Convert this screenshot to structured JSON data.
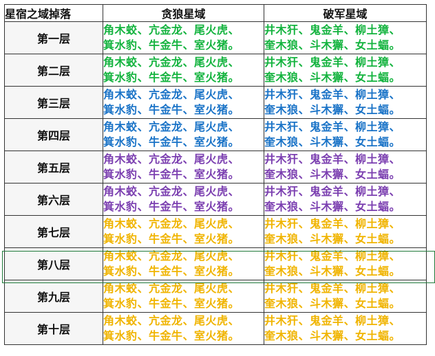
{
  "headers": [
    "星宿之域掉落",
    "贪狼星域",
    "破军星域"
  ],
  "colors": {
    "green": "#13b33e",
    "blue": "#1a73c7",
    "purple": "#7b3fb0",
    "gold": "#f0b400"
  },
  "rows": [
    {
      "label": "第一层",
      "color": "green",
      "tanlang": [
        "角木蛟、亢金龙、尾火虎、",
        "箕水豹、牛金牛、室火猪。"
      ],
      "pojun": [
        "井木犴、鬼金羊、柳土獐、",
        "奎木狼、斗木獬、女土蝠。"
      ]
    },
    {
      "label": "第二层",
      "color": "green",
      "tanlang": [
        "角木蛟、亢金龙、尾火虎、",
        "箕水豹、牛金牛、室火猪。"
      ],
      "pojun": [
        "井木犴、鬼金羊、柳土獐、",
        "奎木狼、斗木獬、女土蝠。"
      ]
    },
    {
      "label": "第三层",
      "color": "blue",
      "tanlang": [
        "角木蛟、亢金龙、尾火虎、",
        "箕水豹、牛金牛、室火猪。"
      ],
      "pojun": [
        "井木犴、鬼金羊、柳土獐、",
        "奎木狼、斗木獬、女土蝠。"
      ]
    },
    {
      "label": "第四层",
      "color": "blue",
      "tanlang": [
        "角木蛟、亢金龙、尾火虎、",
        "箕水豹、牛金牛、室火猪。"
      ],
      "pojun": [
        "井木犴、鬼金羊、柳土獐、",
        "奎木狼、斗木獬、女土蝠。"
      ]
    },
    {
      "label": "第五层",
      "color": "purple",
      "tanlang": [
        "角木蛟、亢金龙、尾火虎、",
        "箕水豹、牛金牛、室火猪。"
      ],
      "pojun": [
        "井木犴、鬼金羊、柳土獐、",
        "奎木狼、斗木獬、女土蝠。"
      ]
    },
    {
      "label": "第六层",
      "color": "purple",
      "tanlang": [
        "角木蛟、亢金龙、尾火虎、",
        "箕水豹、牛金牛、室火猪。"
      ],
      "pojun": [
        "井木犴、鬼金羊、柳土獐、",
        "奎木狼、斗木獬、女土蝠。"
      ]
    },
    {
      "label": "第七层",
      "color": "gold",
      "tanlang": [
        "角木蛟、亢金龙、尾火虎、",
        "箕水豹、牛金牛、室火猪。"
      ],
      "pojun": [
        "井木犴、鬼金羊、柳土獐、",
        "奎木狼、斗木獬、女土蝠。"
      ]
    },
    {
      "label": "第八层",
      "color": "gold",
      "tanlang": [
        "角木蛟、亢金龙、尾火虎、",
        "箕水豹、牛金牛、室火猪。"
      ],
      "pojun": [
        "井木犴、鬼金羊、柳土獐、",
        "奎木狼、斗木獬、女土蝠。"
      ]
    },
    {
      "label": "第九层",
      "color": "gold",
      "tanlang": [
        "角木蛟、亢金龙、尾火虎、",
        "箕水豹、牛金牛、室火猪。"
      ],
      "pojun": [
        "井木犴、鬼金羊、柳土獐、",
        "奎木狼、斗木獬、女土蝠。"
      ]
    },
    {
      "label": "第十层",
      "color": "gold",
      "tanlang": [
        "角木蛟、亢金龙、尾火虎、",
        "箕水豹、牛金牛、室火猪。"
      ],
      "pojun": [
        "井木犴、鬼金羊、柳土獐、",
        "奎木狼、斗木獬、女土蝠。"
      ]
    }
  ]
}
